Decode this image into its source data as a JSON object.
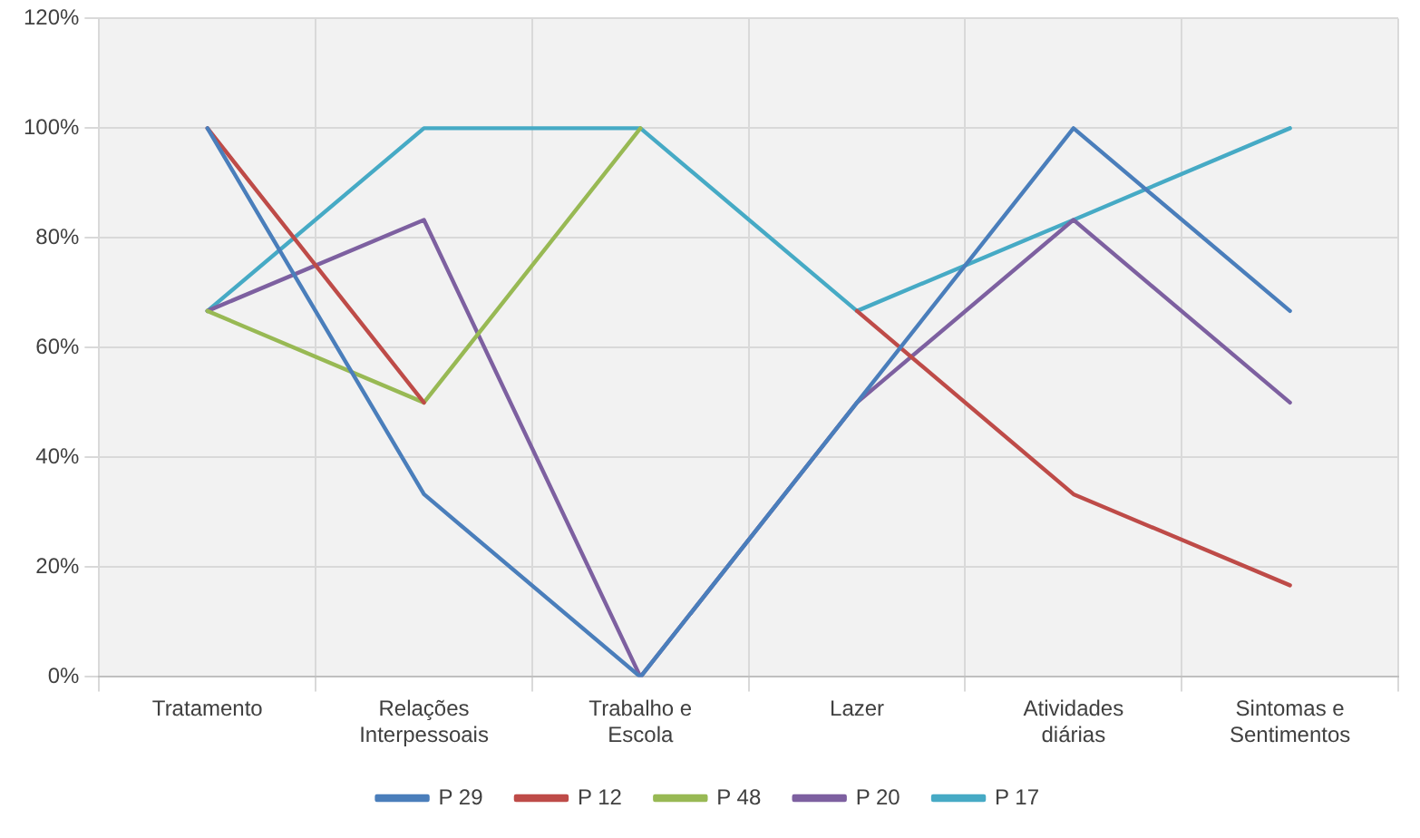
{
  "chart_data": {
    "type": "line",
    "categories": [
      "Tratamento",
      "Relações Interpessoais",
      "Trabalho e Escola",
      "Lazer",
      "Atividades diárias",
      "Sintomas e Sentimentos"
    ],
    "series": [
      {
        "name": "P 29",
        "color": "#4a7ebb",
        "values": [
          100,
          33.3,
          0,
          50,
          100,
          66.7
        ]
      },
      {
        "name": "P 12",
        "color": "#be4b48",
        "values": [
          100,
          50,
          null,
          66.7,
          33.3,
          16.7
        ]
      },
      {
        "name": "P 48",
        "color": "#98b954",
        "values": [
          66.7,
          50,
          100,
          null,
          null,
          null
        ]
      },
      {
        "name": "P 20",
        "color": "#7d60a0",
        "values": [
          66.7,
          83.3,
          0,
          50,
          83.3,
          50
        ]
      },
      {
        "name": "P 17",
        "color": "#46aac5",
        "values": [
          66.7,
          100,
          100,
          66.7,
          83.3,
          100
        ]
      }
    ],
    "ylim": [
      0,
      120
    ],
    "yticks": [
      {
        "value": 0,
        "label": "0%"
      },
      {
        "value": 20,
        "label": "20%"
      },
      {
        "value": 40,
        "label": "40%"
      },
      {
        "value": 60,
        "label": "60%"
      },
      {
        "value": 80,
        "label": "80%"
      },
      {
        "value": 100,
        "label": "100%"
      },
      {
        "value": 120,
        "label": "120%"
      }
    ],
    "grid": true,
    "legend": "bottom",
    "marker": "none",
    "line_style": "solid"
  }
}
